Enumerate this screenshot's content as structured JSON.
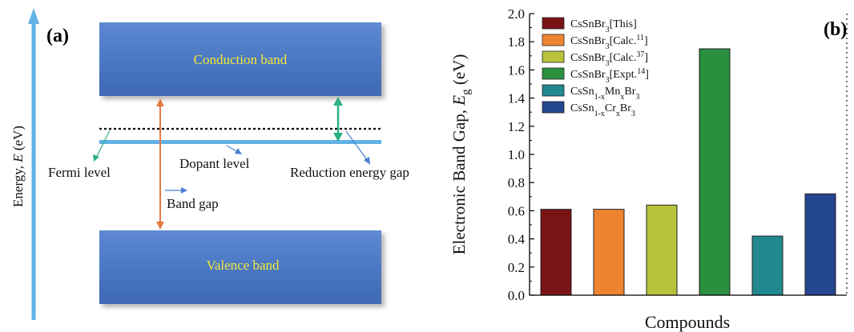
{
  "panel_a": {
    "label": "(a)",
    "y_axis_title": "Energy, ",
    "y_axis_symbol": "E",
    "y_axis_unit": " (eV)",
    "conduction_band": "Conduction band",
    "valence_band": "Valence band",
    "fermi_level": "Fermi level",
    "dopant_level": "Dopant level",
    "reduction_gap": "Reduction energy gap",
    "band_gap": "Band gap"
  },
  "colors": {
    "band_fill": "#4b78c4",
    "band_text": "#f5e838",
    "energy_arrow": "#62b2e4",
    "band_gap_arrow": "#e07c45",
    "reduction_arrow": "#2bb084",
    "dopant_line": "#62b2e4"
  },
  "panel_b": {
    "label": "(b)",
    "xlabel": "Compounds",
    "ylabel_text": "Electronic Band Gap, ",
    "ylabel_symbol": "E",
    "ylabel_sub": "g",
    "ylabel_unit": " (eV)"
  },
  "chart_data": {
    "type": "bar",
    "categories": [
      "CsSnBr3[This]",
      "CsSnBr3[Calc.11]",
      "CsSnBr3[Calc.37]",
      "CsSnBr3[Expt.14]",
      "CsSn1-xMnxBr3",
      "CsSn1-xCrxBr3"
    ],
    "values": [
      0.61,
      0.61,
      0.64,
      1.75,
      0.42,
      0.72
    ],
    "colors": [
      "#7a1316",
      "#ef8430",
      "#b9c23b",
      "#2a8f3f",
      "#22888f",
      "#24458f"
    ],
    "ylabel": "Electronic Band Gap, Eg (eV)",
    "xlabel": "Compounds",
    "ylim": [
      0.0,
      2.0
    ],
    "yticks": [
      "0.0",
      "0.2",
      "0.4",
      "0.6",
      "0.8",
      "1.0",
      "1.2",
      "1.4",
      "1.6",
      "1.8",
      "2.0"
    ],
    "legend_position": "top-left",
    "legend": [
      {
        "base": "CsSnBr",
        "sub": "3",
        "tail": "[This]",
        "sup": "",
        "close": ""
      },
      {
        "base": "CsSnBr",
        "sub": "3",
        "tail": "[Calc.",
        "sup": "11",
        "close": "]"
      },
      {
        "base": "CsSnBr",
        "sub": "3",
        "tail": "[Calc.",
        "sup": "37",
        "close": "]"
      },
      {
        "base": "CsSnBr",
        "sub": "3",
        "tail": "[Expt.",
        "sup": "14",
        "close": "]"
      },
      {
        "parts": [
          [
            "CsSn",
            ""
          ],
          [
            "1-x",
            "sub"
          ],
          [
            "Mn",
            ""
          ],
          [
            "x",
            "sub"
          ],
          [
            "Br",
            ""
          ],
          [
            "3",
            "sub"
          ]
        ]
      },
      {
        "parts": [
          [
            "CsSn",
            ""
          ],
          [
            "1-x",
            "sub"
          ],
          [
            "Cr",
            ""
          ],
          [
            "x",
            "sub"
          ],
          [
            "Br",
            ""
          ],
          [
            "3",
            "sub"
          ]
        ]
      }
    ]
  }
}
